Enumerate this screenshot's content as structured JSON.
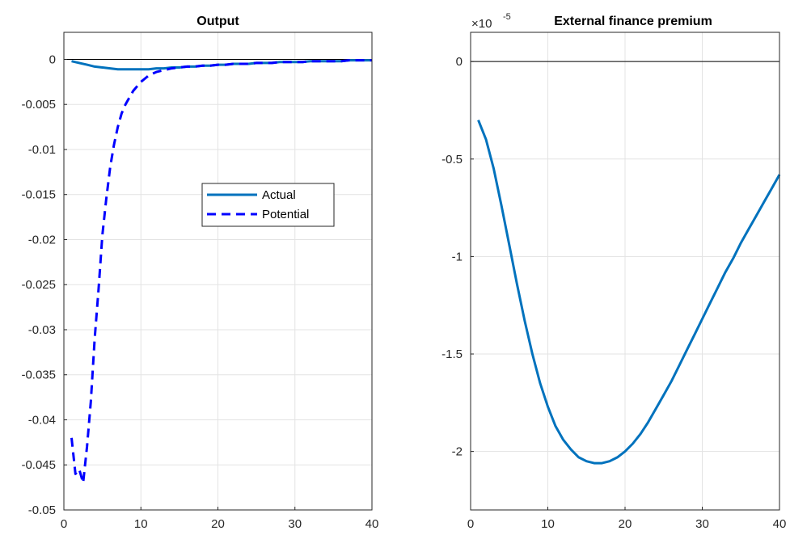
{
  "chart_data": [
    {
      "type": "line",
      "title": "Output",
      "xlim": [
        0,
        40
      ],
      "ylim": [
        -0.05,
        0.003
      ],
      "x_ticks": [
        "0",
        "10",
        "20",
        "30",
        "40"
      ],
      "y_ticks": [
        "0",
        "-0.005",
        "-0.01",
        "-0.015",
        "-0.02",
        "-0.025",
        "-0.03",
        "-0.035",
        "-0.04",
        "-0.045",
        "-0.05"
      ],
      "grid": true,
      "legend_position": "center-right",
      "zero_line": true,
      "series": [
        {
          "name": "Actual",
          "style": "solid",
          "color": "#0072BD",
          "x": [
            1,
            2,
            3,
            4,
            5,
            6,
            7,
            8,
            9,
            10,
            11,
            12,
            13,
            14,
            15,
            16,
            17,
            18,
            19,
            20,
            21,
            22,
            23,
            24,
            25,
            26,
            27,
            28,
            29,
            30,
            31,
            32,
            33,
            34,
            35,
            36,
            37,
            38,
            39,
            40
          ],
          "y": [
            -0.0002,
            -0.0004,
            -0.0006,
            -0.0008,
            -0.0009,
            -0.001,
            -0.0011,
            -0.0011,
            -0.0011,
            -0.0011,
            -0.0011,
            -0.001,
            -0.001,
            -0.0009,
            -0.0009,
            -0.0008,
            -0.0008,
            -0.0007,
            -0.0007,
            -0.0006,
            -0.0006,
            -0.0005,
            -0.0005,
            -0.0005,
            -0.0004,
            -0.0004,
            -0.0004,
            -0.0003,
            -0.0003,
            -0.0003,
            -0.0003,
            -0.0002,
            -0.0002,
            -0.0002,
            -0.0002,
            -0.0002,
            -0.0001,
            -0.0001,
            -0.0001,
            -0.0001
          ]
        },
        {
          "name": "Potential",
          "style": "dashed",
          "color": "#0000FF",
          "x": [
            1,
            1.5,
            2,
            2.5,
            3,
            3.5,
            4,
            4.5,
            5,
            5.5,
            6,
            6.5,
            7,
            7.5,
            8,
            9,
            10,
            11,
            12,
            13,
            14,
            15,
            16,
            17,
            18,
            19,
            20,
            21,
            22,
            23,
            24,
            25,
            26,
            27,
            28,
            29,
            30,
            31,
            32,
            33,
            34,
            35,
            36,
            37,
            38,
            39,
            40
          ],
          "y": [
            -0.042,
            -0.046,
            -0.0455,
            -0.047,
            -0.043,
            -0.038,
            -0.031,
            -0.0255,
            -0.0195,
            -0.0155,
            -0.012,
            -0.0095,
            -0.0075,
            -0.006,
            -0.005,
            -0.0035,
            -0.0025,
            -0.0018,
            -0.0014,
            -0.0012,
            -0.001,
            -0.0009,
            -0.0008,
            -0.0008,
            -0.0007,
            -0.0007,
            -0.0006,
            -0.0006,
            -0.0005,
            -0.0005,
            -0.0005,
            -0.0004,
            -0.0004,
            -0.0004,
            -0.0003,
            -0.0003,
            -0.0003,
            -0.0003,
            -0.0002,
            -0.0002,
            -0.0002,
            -0.0002,
            -0.0002,
            -0.0001,
            -0.0001,
            -0.0001,
            -0.0001
          ]
        }
      ]
    },
    {
      "type": "line",
      "title": "External finance premium",
      "xlim": [
        0,
        40
      ],
      "ylim": [
        -2.3,
        0.15
      ],
      "y_multiplier": "×10",
      "y_multiplier_exp": "-5",
      "x_ticks": [
        "0",
        "10",
        "20",
        "30",
        "40"
      ],
      "y_ticks": [
        "0",
        "-0.5",
        "-1",
        "-1.5",
        "-2"
      ],
      "grid": true,
      "zero_line": true,
      "series": [
        {
          "style": "solid",
          "color": "#0072BD",
          "x": [
            1,
            2,
            3,
            4,
            5,
            6,
            7,
            8,
            9,
            10,
            11,
            12,
            13,
            14,
            15,
            16,
            17,
            18,
            19,
            20,
            21,
            22,
            23,
            24,
            25,
            26,
            27,
            28,
            29,
            30,
            31,
            32,
            33,
            34,
            35,
            36,
            37,
            38,
            39,
            40
          ],
          "y": [
            -0.3,
            -0.4,
            -0.55,
            -0.74,
            -0.94,
            -1.14,
            -1.33,
            -1.5,
            -1.65,
            -1.77,
            -1.87,
            -1.94,
            -1.99,
            -2.03,
            -2.05,
            -2.06,
            -2.06,
            -2.05,
            -2.03,
            -2.0,
            -1.96,
            -1.91,
            -1.85,
            -1.78,
            -1.71,
            -1.64,
            -1.56,
            -1.48,
            -1.4,
            -1.32,
            -1.24,
            -1.16,
            -1.08,
            -1.01,
            -0.93,
            -0.86,
            -0.79,
            -0.72,
            -0.65,
            -0.58
          ]
        }
      ]
    }
  ]
}
